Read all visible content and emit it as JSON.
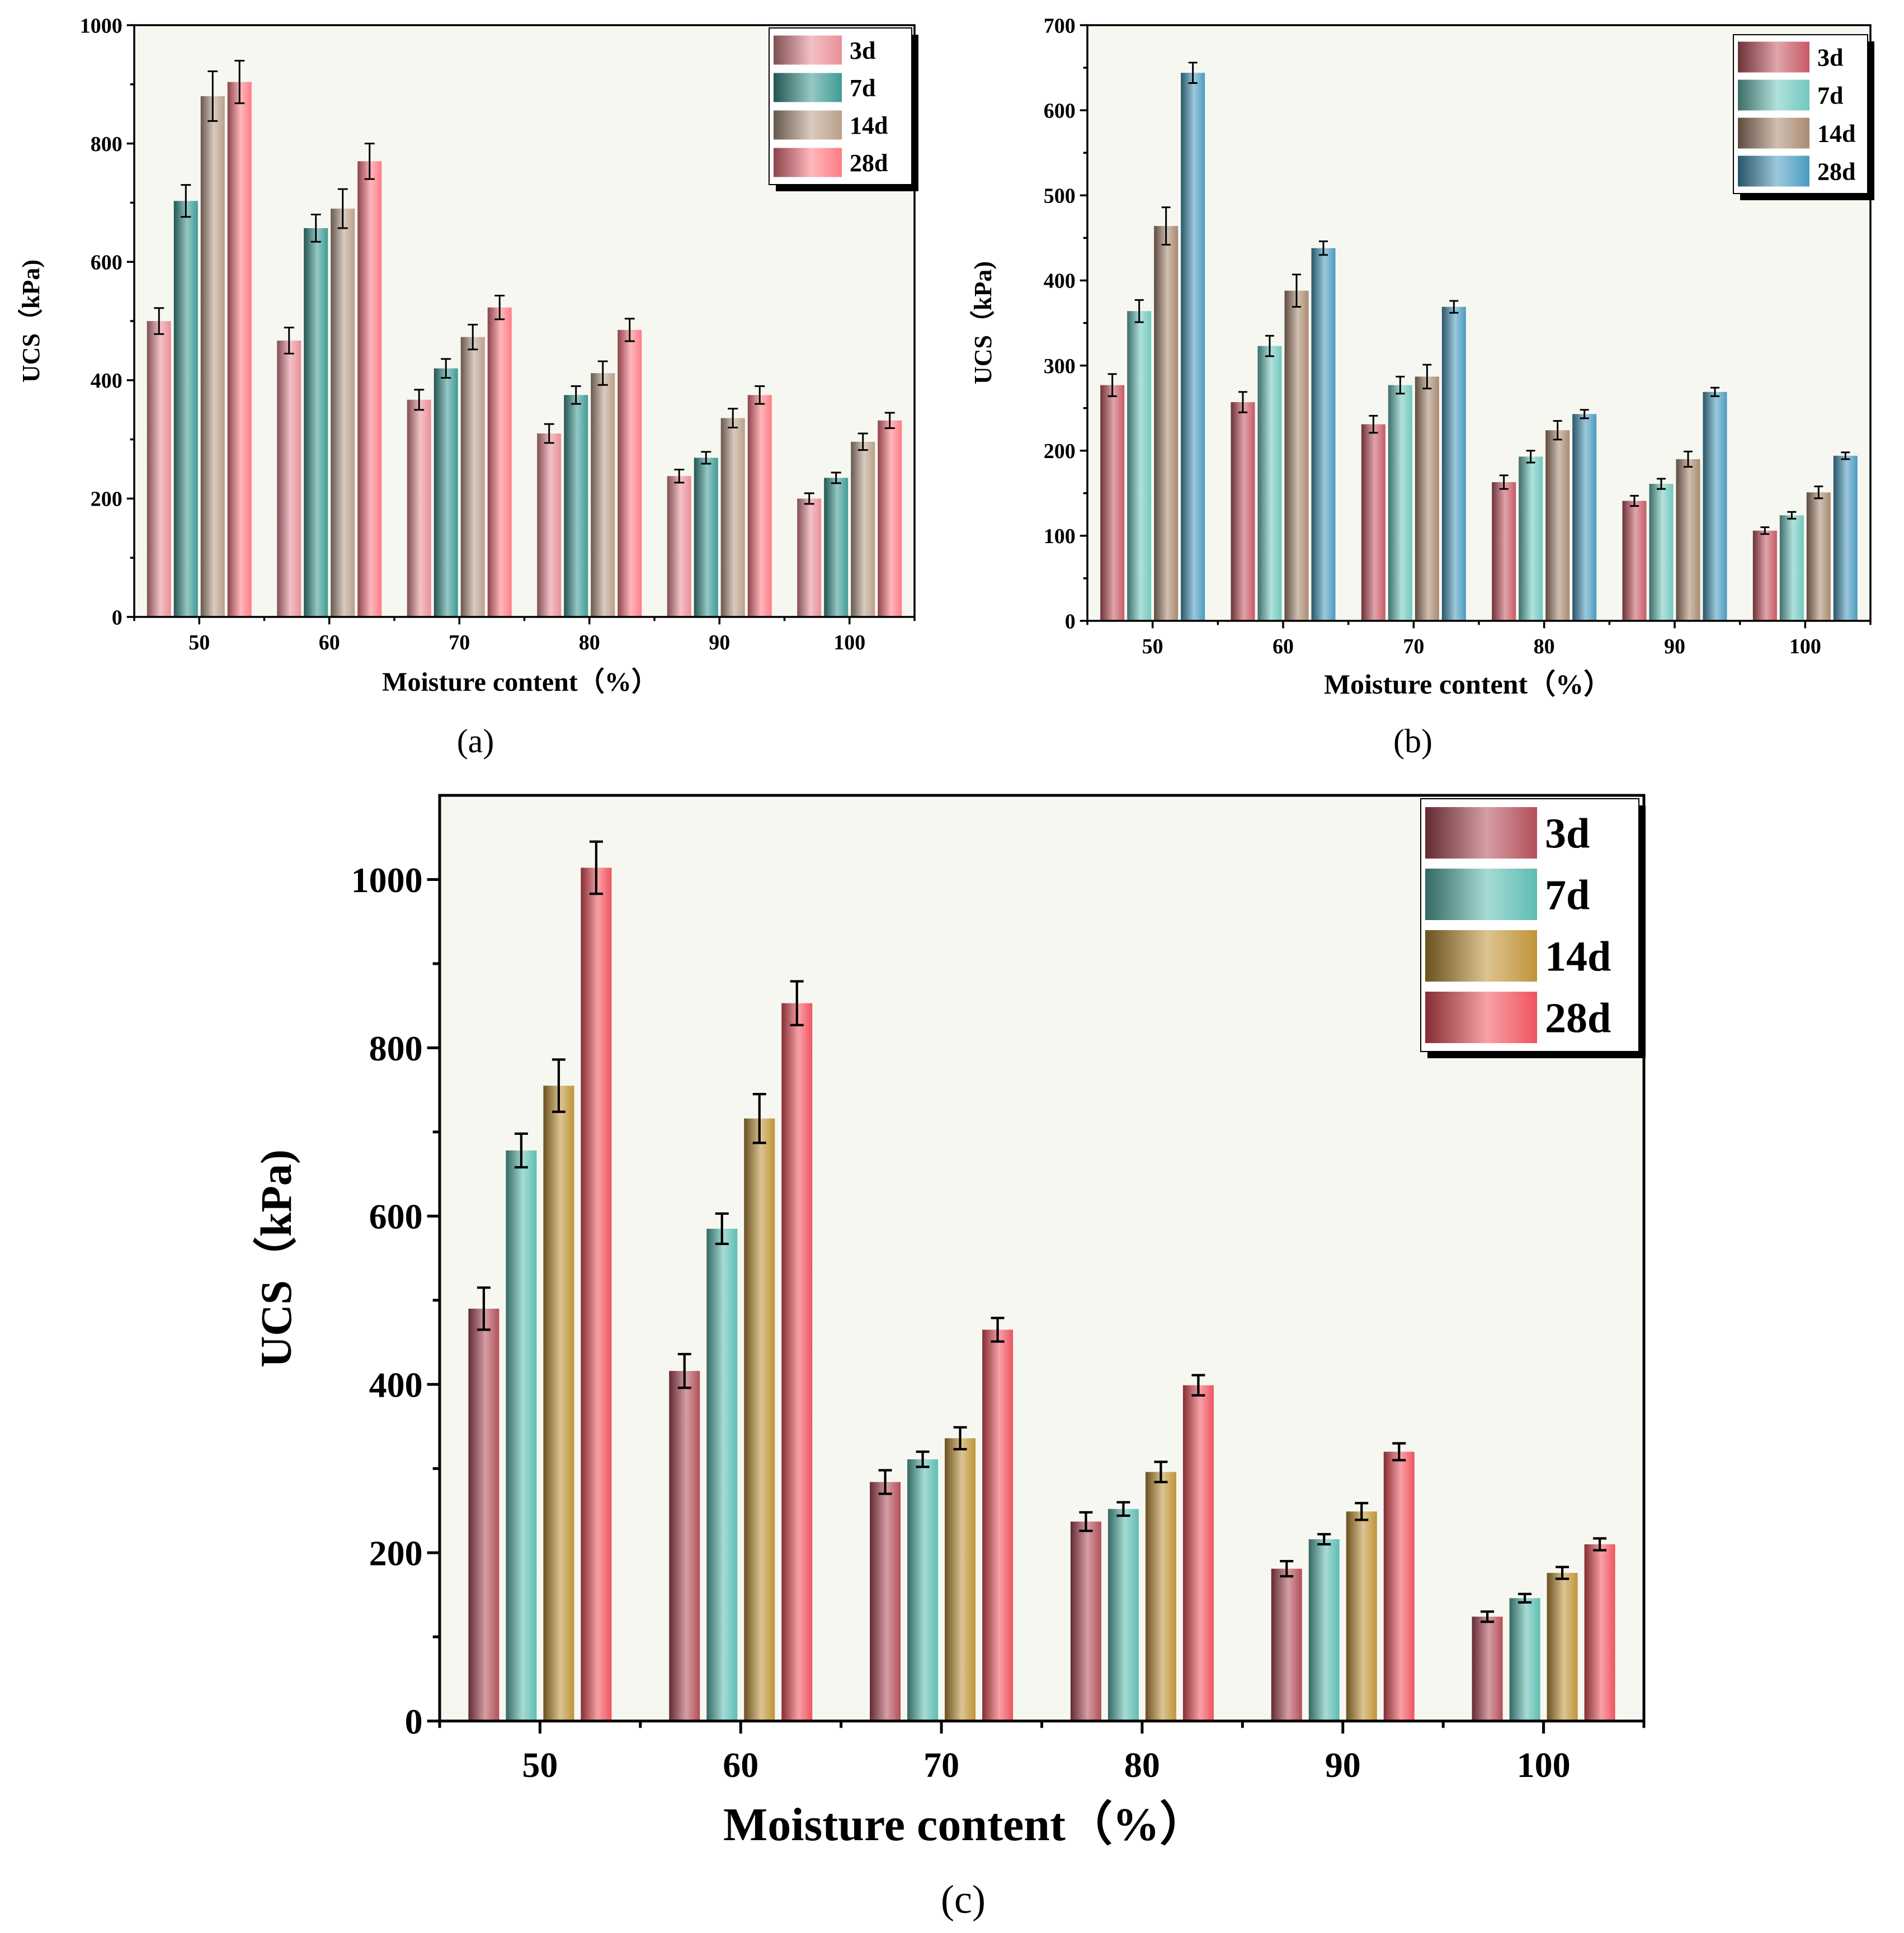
{
  "figures": [
    {
      "id": "a",
      "panel_label": "(a)"
    },
    {
      "id": "b",
      "panel_label": "(b)"
    },
    {
      "id": "c",
      "panel_label": "(c)"
    }
  ],
  "chart_data": [
    {
      "type": "bar",
      "title": "",
      "xlabel": "Moisture content（%）",
      "ylabel": "UCS（kPa)",
      "categories": [
        "50",
        "60",
        "70",
        "80",
        "90",
        "100"
      ],
      "ylim": [
        0,
        1000
      ],
      "yticks": [
        0,
        200,
        400,
        600,
        800,
        1000
      ],
      "grid": false,
      "legend_position": "top-right",
      "series": [
        {
          "name": "3d",
          "color": "#e98f97",
          "values": [
            500,
            467,
            367,
            310,
            238,
            200
          ],
          "errors": [
            22,
            22,
            17,
            16,
            11,
            9
          ]
        },
        {
          "name": "7d",
          "color": "#3f9b95",
          "values": [
            703,
            657,
            420,
            375,
            269,
            235
          ],
          "errors": [
            27,
            23,
            16,
            15,
            10,
            9
          ]
        },
        {
          "name": "14d",
          "color": "#b9a08a",
          "values": [
            880,
            690,
            473,
            412,
            336,
            296
          ],
          "errors": [
            42,
            33,
            21,
            20,
            16,
            14
          ]
        },
        {
          "name": "28d",
          "color": "#ff7c86",
          "values": [
            904,
            770,
            523,
            485,
            375,
            332
          ],
          "errors": [
            36,
            30,
            20,
            19,
            15,
            13
          ]
        }
      ]
    },
    {
      "type": "bar",
      "title": "",
      "xlabel": "Moisture content（%）",
      "ylabel": "UCS（kPa)",
      "categories": [
        "50",
        "60",
        "70",
        "80",
        "90",
        "100"
      ],
      "ylim": [
        0,
        700
      ],
      "yticks": [
        0,
        100,
        200,
        300,
        400,
        500,
        600,
        700
      ],
      "grid": false,
      "legend_position": "top-right",
      "series": [
        {
          "name": "3d",
          "color": "#c75a64",
          "values": [
            277,
            257,
            231,
            163,
            141,
            106
          ],
          "errors": [
            13,
            12,
            10,
            8,
            6,
            4
          ]
        },
        {
          "name": "7d",
          "color": "#71c8bf",
          "values": [
            364,
            323,
            277,
            193,
            161,
            124
          ],
          "errors": [
            13,
            12,
            10,
            7,
            6,
            4
          ]
        },
        {
          "name": "14d",
          "color": "#a98a72",
          "values": [
            464,
            388,
            287,
            224,
            190,
            151
          ],
          "errors": [
            22,
            19,
            14,
            11,
            9,
            7
          ]
        },
        {
          "name": "28d",
          "color": "#4b9bbf",
          "values": [
            644,
            438,
            369,
            243,
            269,
            194
          ],
          "errors": [
            12,
            8,
            7,
            5,
            5,
            4
          ]
        }
      ]
    },
    {
      "type": "bar",
      "title": "",
      "xlabel": "Moisture content（%）",
      "ylabel": "UCS（kPa)",
      "categories": [
        "50",
        "60",
        "70",
        "80",
        "90",
        "100"
      ],
      "ylim": [
        0,
        1100
      ],
      "yticks": [
        0,
        200,
        400,
        600,
        800,
        1000
      ],
      "grid": false,
      "legend_position": "top-right",
      "series": [
        {
          "name": "3d",
          "color": "#b34f59",
          "values": [
            490,
            416,
            284,
            237,
            181,
            124
          ],
          "errors": [
            25,
            20,
            14,
            11,
            9,
            6
          ]
        },
        {
          "name": "7d",
          "color": "#5ebdb3",
          "values": [
            678,
            585,
            311,
            252,
            216,
            146
          ],
          "errors": [
            20,
            18,
            9,
            8,
            6,
            5
          ]
        },
        {
          "name": "14d",
          "color": "#c09438",
          "values": [
            755,
            716,
            336,
            296,
            249,
            176
          ],
          "errors": [
            31,
            29,
            13,
            12,
            10,
            7
          ]
        },
        {
          "name": "28d",
          "color": "#f0545f",
          "values": [
            1014,
            853,
            465,
            399,
            320,
            210
          ],
          "errors": [
            31,
            26,
            14,
            12,
            10,
            7
          ]
        }
      ]
    }
  ]
}
